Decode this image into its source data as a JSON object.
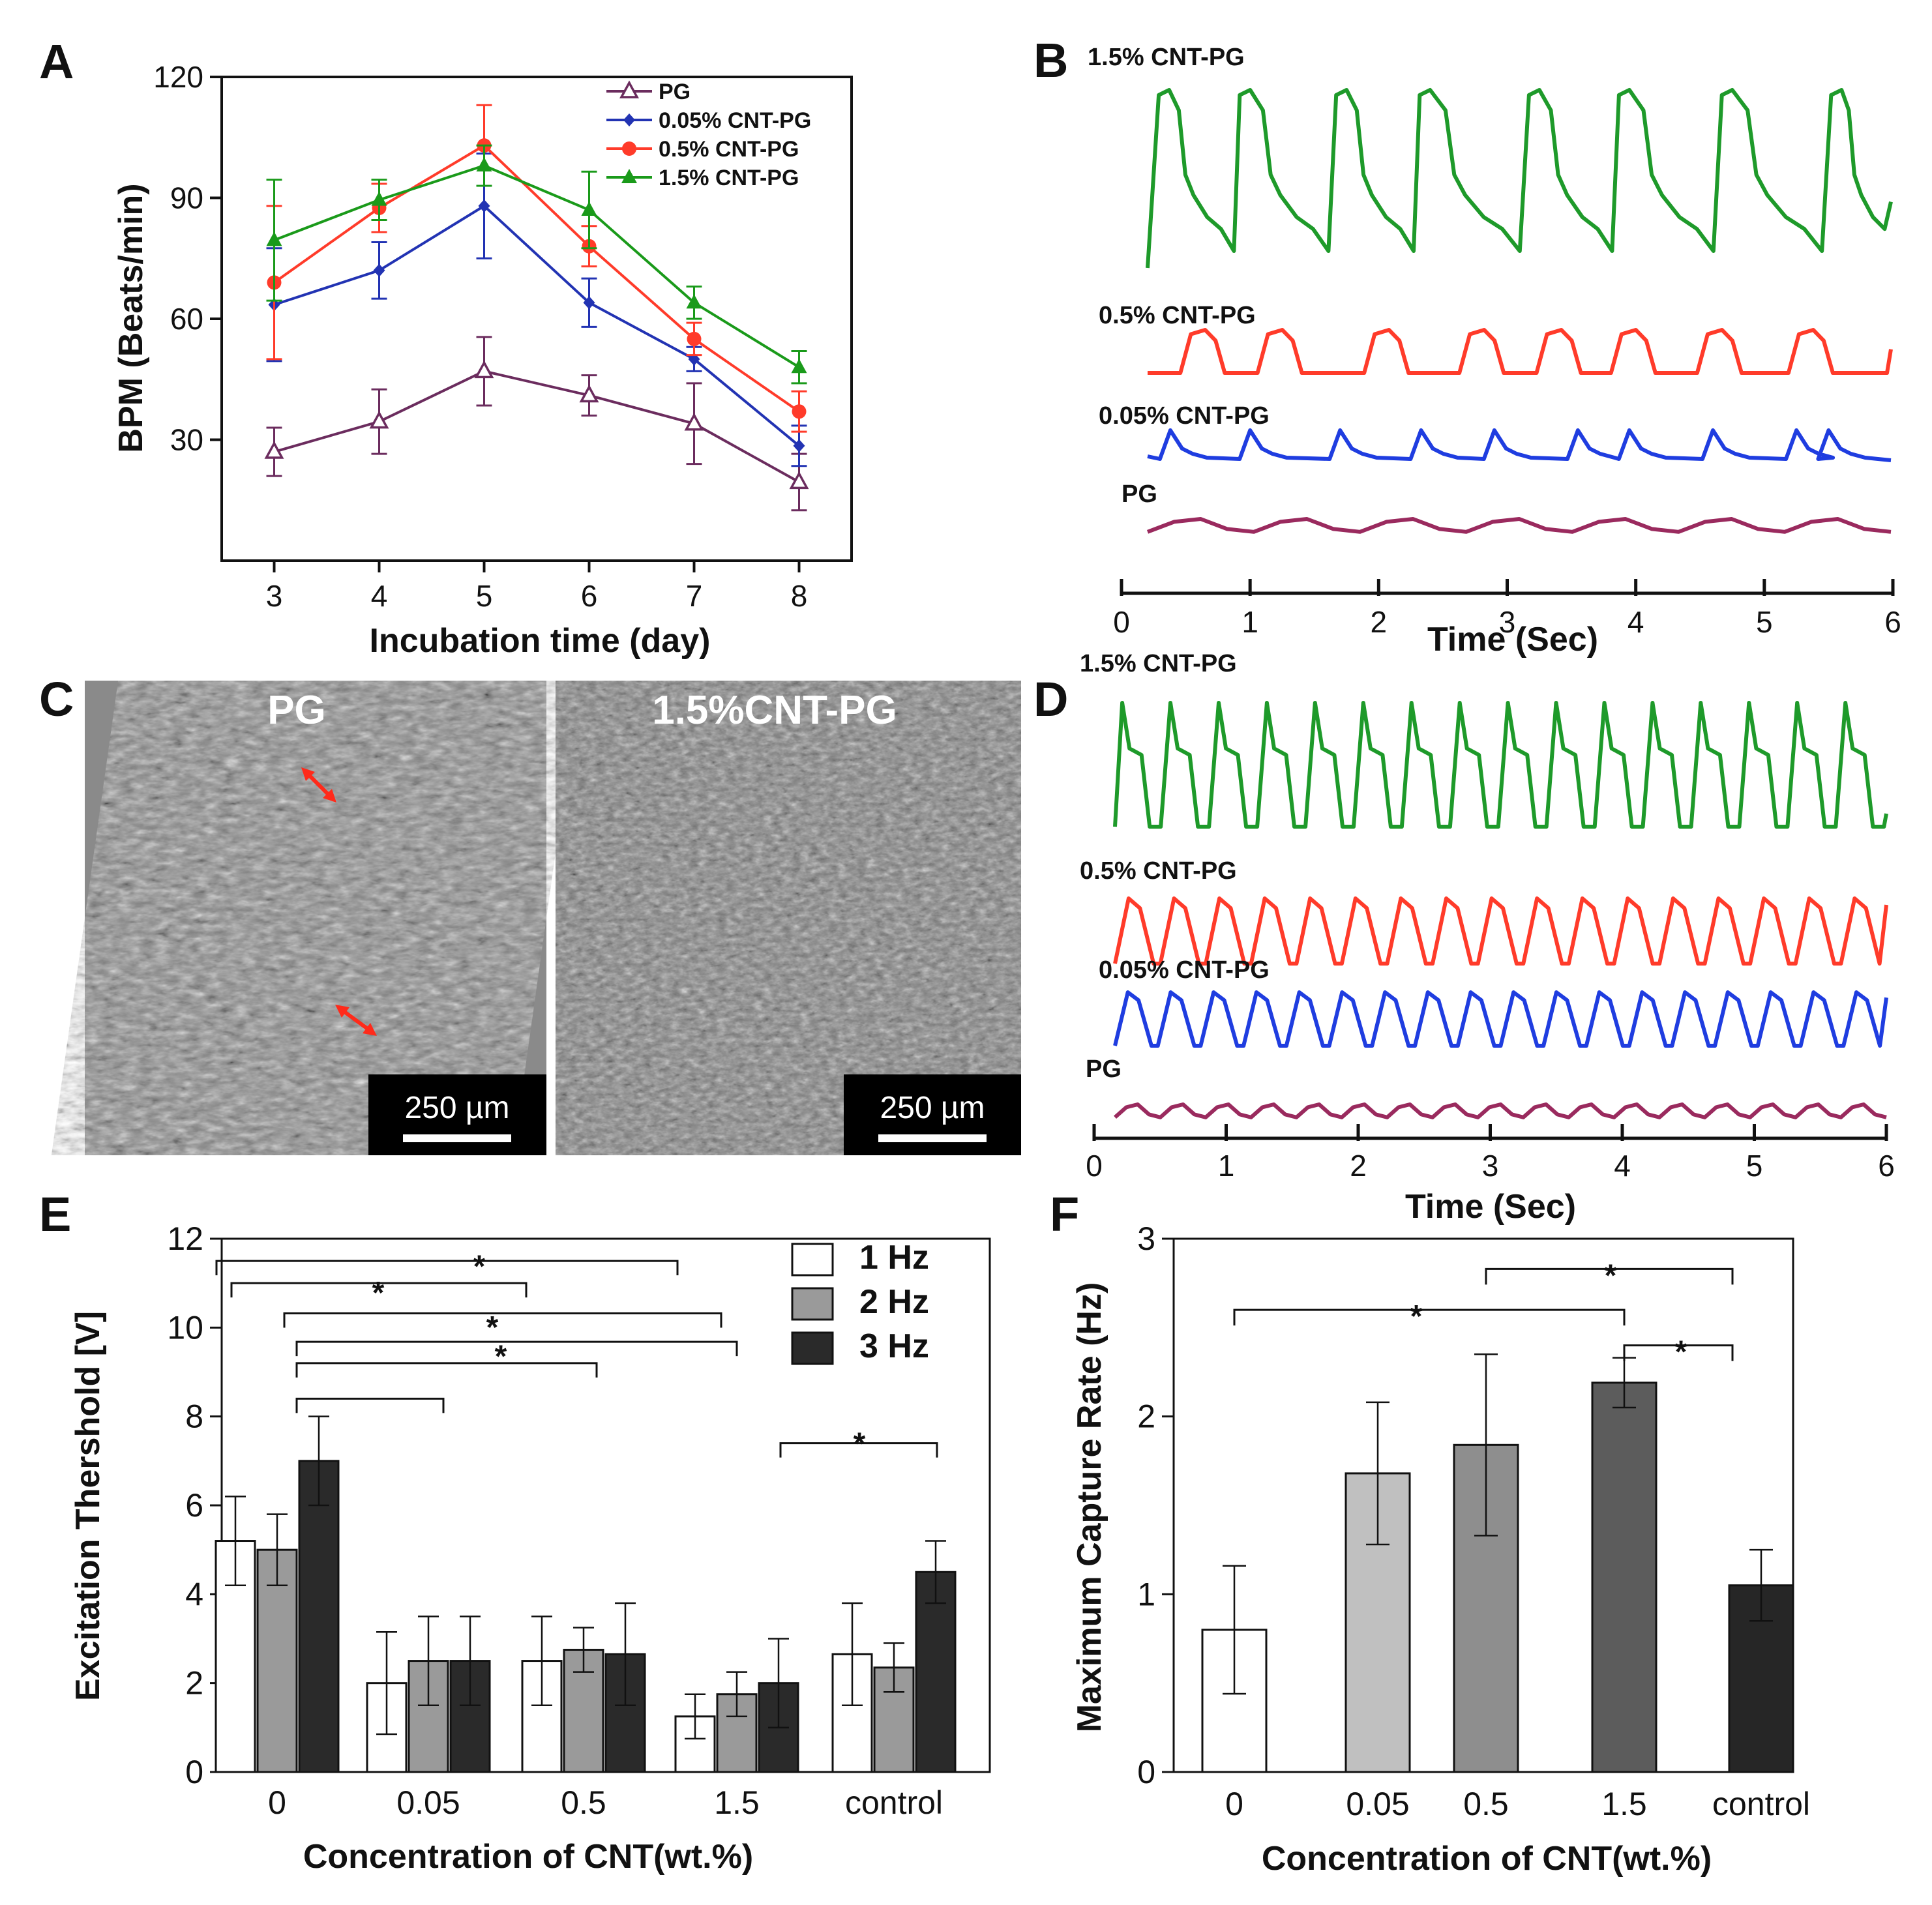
{
  "panels": {
    "A": {
      "letter": "A",
      "chart_data": {
        "type": "line",
        "xlabel": "Incubation time (day)",
        "ylabel": "BPM (Beats/min)",
        "x": [
          3,
          4,
          5,
          6,
          7,
          8
        ],
        "xlim": [
          2.5,
          8.5
        ],
        "ylim": [
          0,
          120
        ],
        "yticks": [
          30,
          60,
          90,
          120
        ],
        "legend_position": "top-right",
        "series": [
          {
            "name": "PG",
            "color": "#6b2c5e",
            "marker": "open-triangle",
            "values": [
              27,
              34.5,
              47,
              41,
              34,
              19.5
            ],
            "errors": [
              6,
              8,
              8.5,
              5,
              10,
              7
            ]
          },
          {
            "name": "0.05% CNT-PG",
            "color": "#2233b3",
            "marker": "diamond",
            "values": [
              63.5,
              72,
              88,
              64,
              50,
              28.5
            ],
            "errors": [
              14,
              7,
              13,
              6,
              3,
              5
            ]
          },
          {
            "name": "0.5% CNT-PG",
            "color": "#ff3b2a",
            "marker": "circle",
            "values": [
              69,
              87.5,
              103,
              78,
              55,
              37
            ],
            "errors": [
              19,
              6,
              10,
              5,
              4,
              5
            ]
          },
          {
            "name": "1.5% CNT-PG",
            "color": "#1a9a1a",
            "marker": "triangle",
            "values": [
              79.5,
              89.5,
              98,
              87,
              64,
              48
            ],
            "errors": [
              15,
              5,
              5,
              9.5,
              4,
              4
            ]
          }
        ]
      }
    },
    "B": {
      "letter": "B",
      "chart_data": {
        "type": "line",
        "xlabel": "Time (Sec)",
        "xlim": [
          0,
          6
        ],
        "xticks": [
          0,
          1,
          2,
          3,
          4,
          5,
          6
        ],
        "series": [
          {
            "name": "1.5% CNT-PG",
            "color": "#1e9a2a",
            "peaks": [
              0.32,
              0.95,
              1.7,
              2.35,
              3.2,
              3.9,
              4.7,
              5.55
            ],
            "amplitude": 1.0,
            "shape": "sawtooth-decay"
          },
          {
            "name": "0.5% CNT-PG",
            "color": "#ff3b2a",
            "peaks": [
              0.6,
              1.2,
              2.03,
              2.77,
              3.37,
              3.95,
              4.62,
              5.33
            ],
            "amplitude": 0.55,
            "shape": "plateau"
          },
          {
            "name": "0.05% CNT-PG",
            "color": "#1f3de0",
            "peaks": [
              0.38,
              1.0,
              1.7,
              2.33,
              2.9,
              3.55,
              3.95,
              4.6,
              5.25,
              5.5
            ],
            "amplitude": 0.3,
            "shape": "spike"
          },
          {
            "name": "PG",
            "color": "#9a2a5e",
            "peaks": [
              0.2,
              1.2,
              2.3,
              3.2,
              4.0,
              5.0,
              5.8
            ],
            "amplitude": 0.15,
            "shape": "wave"
          }
        ]
      }
    },
    "C": {
      "letter": "C",
      "images": [
        {
          "title": "PG",
          "scale_label": "250 µm"
        },
        {
          "title": "1.5%CNT-PG",
          "scale_label": "250 µm"
        }
      ]
    },
    "D": {
      "letter": "D",
      "chart_data": {
        "type": "line",
        "xlabel": "Time (Sec)",
        "xlim": [
          0,
          6
        ],
        "xticks": [
          0,
          1,
          2,
          3,
          4,
          5,
          6
        ],
        "series": [
          {
            "name": "1.5% CNT-PG",
            "color": "#1e9a2a",
            "cycles": 16,
            "amplitude": 1.0,
            "shape": "spike"
          },
          {
            "name": "0.5% CNT-PG",
            "color": "#ff3b2a",
            "cycles": 17,
            "amplitude": 0.55,
            "shape": "zigzag"
          },
          {
            "name": "0.05% CNT-PG",
            "color": "#1f3de0",
            "cycles": 18,
            "amplitude": 0.45,
            "shape": "zigzag"
          },
          {
            "name": "PG",
            "color": "#9a2a5e",
            "cycles": 17,
            "amplitude": 0.12,
            "shape": "wave"
          }
        ]
      }
    },
    "E": {
      "letter": "E",
      "chart_data": {
        "type": "bar",
        "xlabel": "Concentration of CNT(wt.%)",
        "ylabel": "Excitation Thershold [V]",
        "categories": [
          "0",
          "0.05",
          "0.5",
          "1.5",
          "control"
        ],
        "ylim": [
          0,
          12
        ],
        "yticks": [
          0,
          2,
          4,
          6,
          8,
          10,
          12
        ],
        "legend_position": "top-right",
        "series": [
          {
            "name": "1 Hz",
            "color": "#ffffff",
            "values": [
              5.2,
              2.0,
              2.5,
              1.25,
              2.65
            ],
            "errors": [
              1.0,
              1.15,
              1.0,
              0.5,
              1.15
            ]
          },
          {
            "name": "2 Hz",
            "color": "#9a9a9a",
            "values": [
              5.0,
              2.5,
              2.75,
              1.75,
              2.35
            ],
            "errors": [
              0.8,
              1.0,
              0.5,
              0.5,
              0.55
            ]
          },
          {
            "name": "3 Hz",
            "color": "#2a2a2a",
            "values": [
              7.0,
              2.5,
              2.65,
              2.0,
              4.5
            ],
            "errors": [
              1.0,
              1.0,
              1.15,
              1.0,
              0.7
            ]
          }
        ],
        "annotations": [
          "*",
          "*",
          "*",
          "*",
          "*"
        ]
      }
    },
    "F": {
      "letter": "F",
      "chart_data": {
        "type": "bar",
        "xlabel": "Concentration of CNT(wt.%)",
        "ylabel": "Maximum Capture Rate (Hz)",
        "categories": [
          "0",
          "0.05",
          "0.5",
          "1.5",
          "control"
        ],
        "values": [
          0.8,
          1.68,
          1.84,
          2.19,
          1.05
        ],
        "errors": [
          0.36,
          0.4,
          0.51,
          0.14,
          0.2
        ],
        "colors": [
          "#ffffff",
          "#c0c0c0",
          "#8e8e8e",
          "#5c5c5c",
          "#262626"
        ],
        "ylim": [
          0,
          3
        ],
        "yticks": [
          0,
          1,
          2,
          3
        ],
        "annotations": [
          "*",
          "*",
          "*"
        ]
      }
    }
  }
}
